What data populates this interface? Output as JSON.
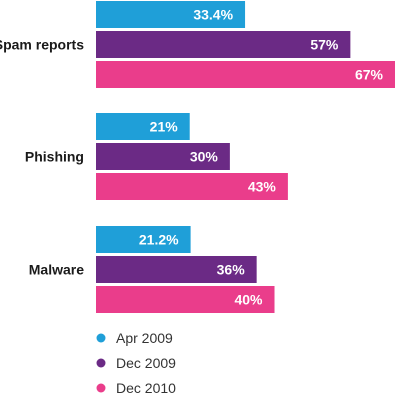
{
  "chart_data": {
    "type": "bar",
    "orientation": "horizontal",
    "categories": [
      "Spam reports",
      "Phishing",
      "Malware"
    ],
    "series": [
      {
        "name": "Apr 2009",
        "color": "#1f9fd8",
        "values": [
          33.4,
          21,
          21.2
        ],
        "labels": [
          "33.4%",
          "21%",
          "21.2%"
        ]
      },
      {
        "name": "Dec 2009",
        "color": "#6b2a85",
        "values": [
          57,
          30,
          36
        ],
        "labels": [
          "57%",
          "30%",
          "36%"
        ]
      },
      {
        "name": "Dec 2010",
        "color": "#ea3d8b",
        "values": [
          67,
          43,
          40
        ],
        "labels": [
          "67%",
          "43%",
          "40%"
        ]
      }
    ],
    "xlim": [
      0,
      100
    ],
    "grid": false,
    "legend_position": "bottom-left"
  }
}
